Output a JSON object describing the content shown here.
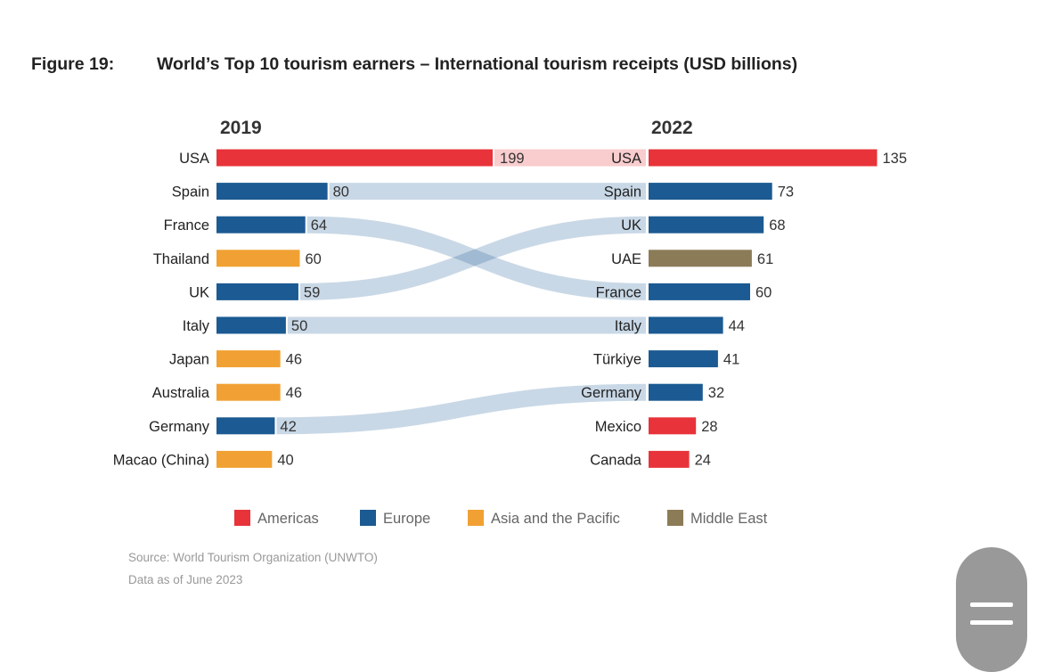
{
  "title": {
    "figure": "Figure 19:",
    "text": "World’s Top 10 tourism earners – International tourism receipts (USD billions)"
  },
  "chart_data": {
    "type": "bar",
    "title": "World’s Top 10 tourism earners – International tourism receipts (USD billions)",
    "panels": [
      {
        "year": "2019",
        "rows": [
          {
            "country": "USA",
            "value": 199,
            "region": "Americas"
          },
          {
            "country": "Spain",
            "value": 80,
            "region": "Europe"
          },
          {
            "country": "France",
            "value": 64,
            "region": "Europe"
          },
          {
            "country": "Thailand",
            "value": 60,
            "region": "Asia and the Pacific"
          },
          {
            "country": "UK",
            "value": 59,
            "region": "Europe"
          },
          {
            "country": "Italy",
            "value": 50,
            "region": "Europe"
          },
          {
            "country": "Japan",
            "value": 46,
            "region": "Asia and the Pacific"
          },
          {
            "country": "Australia",
            "value": 46,
            "region": "Asia and the Pacific"
          },
          {
            "country": "Germany",
            "value": 42,
            "region": "Europe"
          },
          {
            "country": "Macao (China)",
            "value": 40,
            "region": "Asia and the Pacific"
          }
        ]
      },
      {
        "year": "2022",
        "rows": [
          {
            "country": "USA",
            "value": 135,
            "region": "Americas"
          },
          {
            "country": "Spain",
            "value": 73,
            "region": "Europe"
          },
          {
            "country": "UK",
            "value": 68,
            "region": "Europe"
          },
          {
            "country": "UAE",
            "value": 61,
            "region": "Middle East"
          },
          {
            "country": "France",
            "value": 60,
            "region": "Europe"
          },
          {
            "country": "Italy",
            "value": 44,
            "region": "Europe"
          },
          {
            "country": "Türkiye",
            "value": 41,
            "region": "Europe"
          },
          {
            "country": "Germany",
            "value": 32,
            "region": "Europe"
          },
          {
            "country": "Mexico",
            "value": 28,
            "region": "Americas"
          },
          {
            "country": "Canada",
            "value": 24,
            "region": "Americas"
          }
        ]
      }
    ],
    "legend": [
      {
        "label": "Americas",
        "color": "#e8333a"
      },
      {
        "label": "Europe",
        "color": "#1b5a92"
      },
      {
        "label": "Asia and the Pacific",
        "color": "#f1a133"
      },
      {
        "label": "Middle East",
        "color": "#8c7b57"
      }
    ],
    "legend_position": "bottom"
  },
  "source": {
    "line1": "Source: World Tourism Organization (UNWTO)",
    "line2": "Data as of June 2023"
  }
}
